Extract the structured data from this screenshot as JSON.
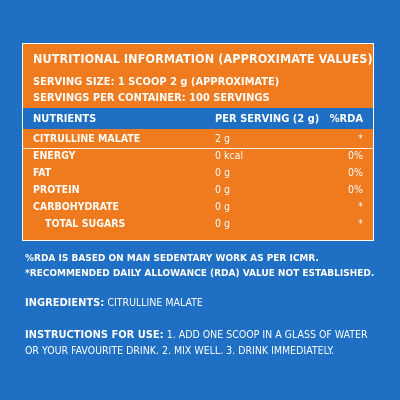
{
  "panel": {
    "title": "NUTRITIONAL INFORMATION (APPROXIMATE VALUES)",
    "serving_size": "SERVING SIZE: 1 SCOOP 2 g (APPROXIMATE)",
    "servings_per_container": "SERVINGS PER CONTAINER: 100 SERVINGS",
    "headers": {
      "nutrients": "NUTRIENTS",
      "per_serving": "PER SERVING (2 g)",
      "rda": "%RDA"
    },
    "rows": [
      {
        "name": "CITRULLINE MALATE",
        "value": "2 g",
        "rda": "*"
      },
      {
        "name": "ENERGY",
        "value": "0 kcal",
        "rda": "0%"
      },
      {
        "name": "FAT",
        "value": "0 g",
        "rda": "0%"
      },
      {
        "name": "PROTEIN",
        "value": "0 g",
        "rda": "0%"
      },
      {
        "name": "CARBOHYDRATE",
        "value": "0 g",
        "rda": "*"
      },
      {
        "name": "TOTAL SUGARS",
        "value": "0 g",
        "rda": "*"
      }
    ]
  },
  "notes": {
    "rda_basis": "%RDA IS BASED ON MAN SEDENTARY WORK AS PER ICMR.",
    "rda_not_established": "*RECOMMENDED DAILY ALLOWANCE (RDA) VALUE NOT ESTABLISHED."
  },
  "ingredients": {
    "label": "INGREDIENTS:",
    "value": "CITRULLINE MALATE"
  },
  "instructions": {
    "label": "INSTRUCTIONS FOR USE:",
    "value": "1. ADD ONE SCOOP IN A GLASS OF WATER OR YOUR FAVOURITE DRINK. 2. MIX WELL. 3. DRINK IMMEDIATELY."
  },
  "colors": {
    "background": "#1f6fc4",
    "panel": "#f07a1e",
    "text": "#ffffff"
  }
}
